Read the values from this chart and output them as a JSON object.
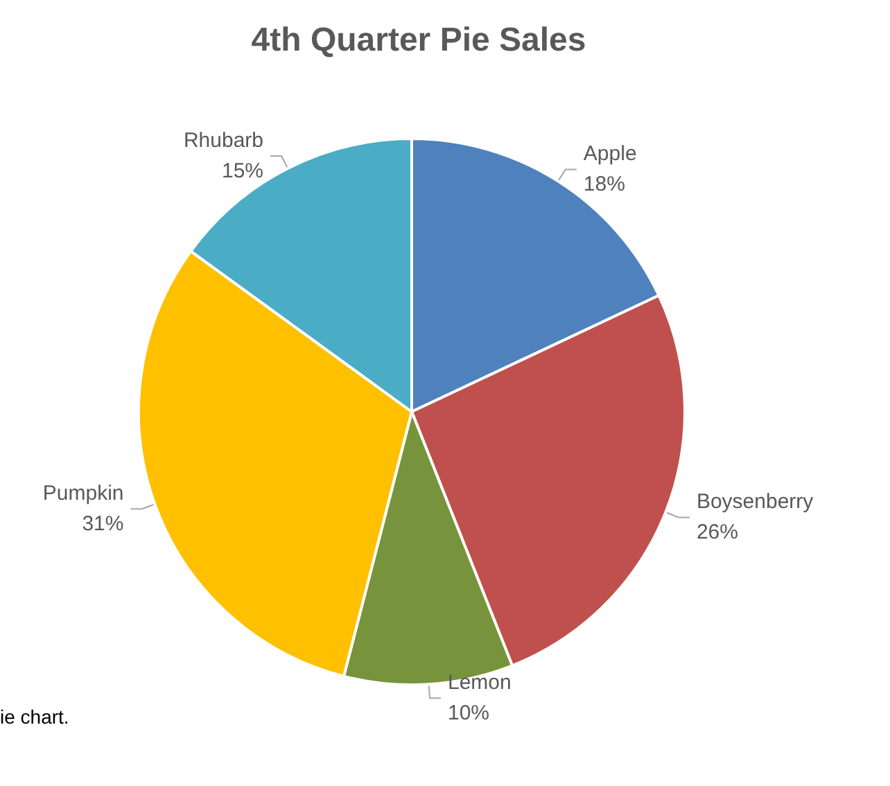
{
  "chart_data": {
    "type": "pie",
    "title": "4th Quarter Pie Sales",
    "categories": [
      "Apple",
      "Boysenberry",
      "Lemon",
      "Pumpkin",
      "Rhubarb"
    ],
    "values": [
      18,
      26,
      10,
      31,
      15
    ],
    "value_labels": [
      "18%",
      "26%",
      "10%",
      "31%",
      "15%"
    ],
    "colors": [
      "#4f81bd",
      "#c0504d",
      "#77933c",
      "#ffc000",
      "#4bacc6"
    ],
    "annotations": [
      "ie chart."
    ],
    "legend": false
  }
}
